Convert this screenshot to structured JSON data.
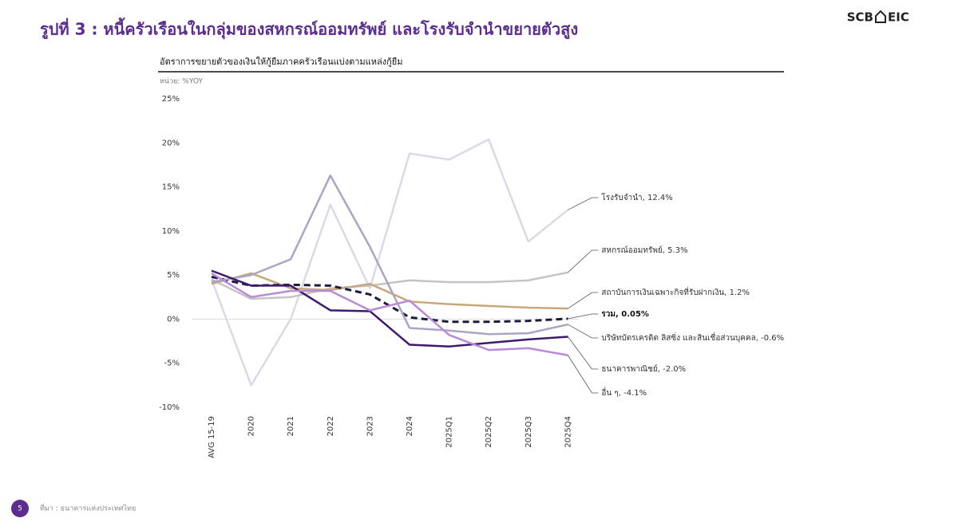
{
  "header": {
    "title": "รูปที่ 3 : หนี้ครัวเรือนในกลุ่มของสหกรณ์ออมทรัพย์ และโรงรับจำนำขยายตัวสูง",
    "logo_left": "SCB",
    "logo_right": "EIC"
  },
  "footer": {
    "page": "5",
    "source": "ที่มา : ธนาคารแห่งประเทศไทย"
  },
  "chart_data": {
    "type": "line",
    "title": "อัตราการขยายตัวของเงินให้กู้ยืมภาคครัวเรือนแบ่งตามแหล่งกู้ยืม",
    "unit": "หน่วย: %YOY",
    "categories": [
      "AVG 15-19",
      "2020",
      "2021",
      "2022",
      "2023",
      "2024",
      "2025Q1",
      "2025Q2",
      "2025Q3",
      "2025Q4"
    ],
    "ylim": [
      -10,
      25
    ],
    "yticks": [
      {
        "value": 25,
        "label": "25%"
      },
      {
        "value": 20,
        "label": "20%"
      },
      {
        "value": 15,
        "label": "15%"
      },
      {
        "value": 10,
        "label": "10%"
      },
      {
        "value": 5,
        "label": "5%"
      },
      {
        "value": 0,
        "label": "0%"
      },
      {
        "value": -5,
        "label": "-5%"
      },
      {
        "value": -10,
        "label": "-10%"
      }
    ],
    "grid": false,
    "series": [
      {
        "name": "โรงรับจำนำ, 12.4%",
        "color": "#dcd9e6",
        "values": [
          4.5,
          -7.5,
          0,
          13,
          3.5,
          18.8,
          18.1,
          20.4,
          8.8,
          12.4
        ]
      },
      {
        "name": "สหกรณ์ออมทรัพย์, 5.3%",
        "color": "#c4c4c4",
        "values": [
          4.5,
          2.3,
          2.5,
          3.5,
          3.8,
          4.4,
          4.2,
          4.2,
          4.4,
          5.3
        ]
      },
      {
        "name": "สถาบันการเงินเฉพาะกิจที่รับฝากเงิน, 1.2%",
        "color": "#c9a77c",
        "values": [
          4.0,
          5.2,
          3.5,
          3.3,
          4.0,
          2.0,
          1.7,
          1.5,
          1.3,
          1.2
        ]
      },
      {
        "name": "รวม, 0.05%",
        "color": "#1f1a3d",
        "dashed": true,
        "values": [
          4.8,
          3.8,
          3.9,
          3.8,
          2.8,
          0.2,
          -0.3,
          -0.3,
          -0.2,
          0.05
        ]
      },
      {
        "name": "บริษัทบัตรเครดิต ลิสซิ่ง และสินเชื่อส่วนบุคคล, -0.6%",
        "color": "#aaa4c6",
        "values": [
          4.2,
          5.0,
          6.8,
          16.3,
          8.2,
          -1.0,
          -1.3,
          -1.7,
          -1.6,
          -0.6
        ]
      },
      {
        "name": "ธนาคารพาณิชย์, -2.0%",
        "color": "#3d1a6e",
        "values": [
          5.5,
          3.8,
          3.8,
          1.0,
          0.9,
          -2.9,
          -3.1,
          -2.7,
          -2.3,
          -2.0
        ]
      },
      {
        "name": "อื่น ๆ, -4.1%",
        "color": "#b98ad6",
        "values": [
          5.2,
          2.5,
          3.2,
          3.2,
          1.0,
          2.1,
          -1.8,
          -3.5,
          -3.3,
          -4.1
        ]
      }
    ]
  }
}
